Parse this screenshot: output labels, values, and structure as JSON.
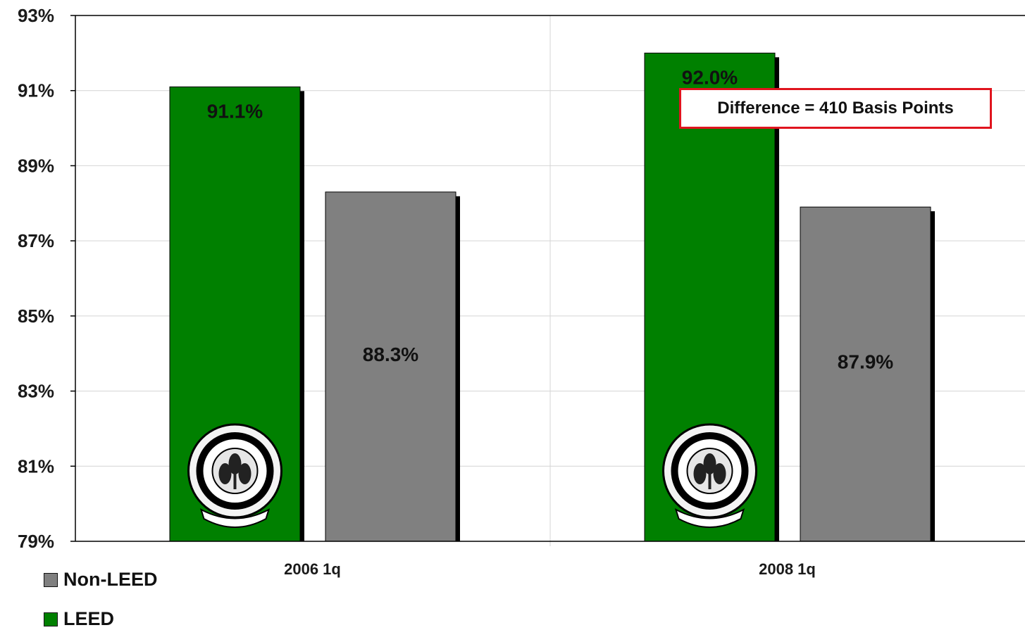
{
  "chart_data": {
    "type": "bar",
    "categories": [
      "2006 1q",
      "2008 1q"
    ],
    "series": [
      {
        "name": "LEED",
        "values": [
          91.1,
          92.0
        ],
        "color": "#008000",
        "labels": [
          "91.1%",
          "92.0%"
        ]
      },
      {
        "name": "Non-LEED",
        "values": [
          88.3,
          87.9
        ],
        "color": "#808080",
        "labels": [
          "88.3%",
          "87.9%"
        ]
      }
    ],
    "ylim": [
      79,
      93
    ],
    "yticks": [
      "79%",
      "81%",
      "83%",
      "85%",
      "87%",
      "89%",
      "91%",
      "93%"
    ],
    "ytick_values": [
      79,
      81,
      83,
      85,
      87,
      89,
      91,
      93
    ],
    "grid": true,
    "legend_position": "bottom-left",
    "annotation": "Difference = 410 Basis Points",
    "logo": "usgbc-member-seal-icon"
  },
  "legend": {
    "items": [
      {
        "label": "Non-LEED",
        "color": "#808080"
      },
      {
        "label": "LEED",
        "color": "#008000"
      }
    ]
  }
}
